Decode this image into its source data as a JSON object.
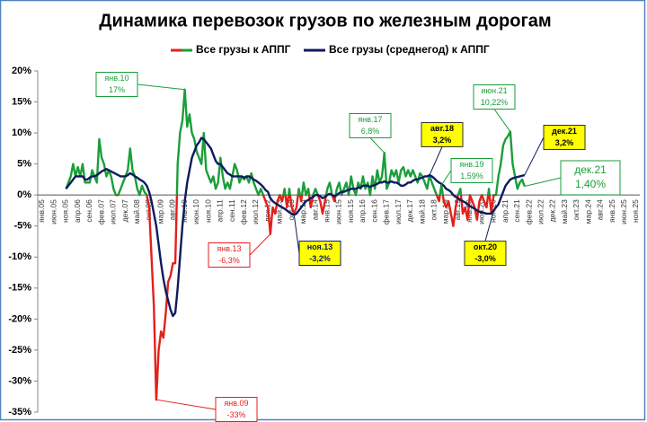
{
  "chart_data": {
    "type": "line",
    "title": "Динамика перевозок грузов по железным дорогам",
    "categories": [
      "янв.05",
      null,
      null,
      null,
      null,
      "июн.05",
      null,
      null,
      null,
      null,
      "ноя.05",
      null,
      null,
      null,
      null,
      "апр.06",
      null,
      null,
      null,
      null,
      "сен.06",
      null,
      null,
      null,
      null,
      "фев.07",
      null,
      null,
      null,
      null,
      "июл.07",
      null,
      null,
      null,
      null,
      "дек.07",
      null,
      null,
      null,
      null,
      "май.08",
      null,
      null,
      null,
      null,
      "окт.08",
      null,
      null,
      null,
      null,
      "мар.09",
      null,
      null,
      null,
      null,
      "авг.09",
      null,
      null,
      null,
      null,
      "янв.10",
      null,
      null,
      null,
      null,
      "июн.10",
      null,
      null,
      null,
      null,
      "ноя.10",
      null,
      null,
      null,
      null,
      "апр.11",
      null,
      null,
      null,
      null,
      "сен.11",
      null,
      null,
      null,
      null,
      "фев.12",
      null,
      null,
      null,
      null,
      "июл.12",
      null,
      null,
      null,
      null,
      "дек.12",
      null,
      null,
      null,
      null,
      "май.13",
      null,
      null,
      null,
      null,
      "окт.13",
      null,
      null,
      null,
      null,
      "мар.14",
      null,
      null,
      null,
      null,
      "авг.14",
      null,
      null,
      null,
      null,
      "янв.15",
      null,
      null,
      null,
      null,
      "июн.15",
      null,
      null,
      null,
      null,
      "ноя.15",
      null,
      null,
      null,
      null,
      "апр.16",
      null,
      null,
      null,
      null,
      "сен.16",
      null,
      null,
      null,
      null,
      "фев.17",
      null,
      null,
      null,
      null,
      "июл.17",
      null,
      null,
      null,
      null,
      "дек.17",
      null,
      null,
      null,
      null,
      "май.18",
      null,
      null,
      null,
      null,
      "окт.18",
      null,
      null,
      null,
      null,
      "мар.19",
      null,
      null,
      null,
      null,
      "авг.19",
      null,
      null,
      null,
      null,
      "янв.20",
      null,
      null,
      null,
      null,
      "июн.20",
      null,
      null,
      null,
      null,
      "ноя.20",
      null,
      null,
      null,
      null,
      "апр.21",
      null,
      null,
      null,
      null,
      "сен.21",
      null,
      null,
      null,
      null,
      "фев.22",
      null,
      null,
      null,
      null,
      "июл.22",
      null,
      null,
      null,
      null,
      "дек.22",
      null,
      null,
      null,
      null,
      "май.23",
      null,
      null,
      null,
      null,
      "окт.23",
      null,
      null,
      null,
      null,
      "мар.24",
      null,
      null,
      null,
      null,
      "авг.24",
      null,
      null,
      null,
      null,
      "янв.25",
      null,
      null,
      null,
      null,
      "июн.25",
      null,
      null,
      null,
      null,
      "ноя.25"
    ],
    "series": [
      {
        "name": "Все грузы к АППГ",
        "color": "#1a9e3a",
        "negative_color": "#e3201b",
        "values": [
          null,
          null,
          null,
          null,
          null,
          null,
          null,
          null,
          null,
          null,
          1,
          2,
          3,
          5,
          3,
          4.5,
          3,
          5,
          2,
          2,
          2,
          4,
          3,
          2,
          9,
          6,
          5,
          3,
          4,
          3,
          1,
          0,
          0,
          1,
          2,
          3,
          4,
          7.5,
          4,
          3,
          1,
          0,
          1.5,
          0.5,
          0,
          -2,
          -10,
          -18,
          -33,
          -25,
          -22,
          -23,
          -19,
          -14,
          -13,
          -11,
          -11,
          5,
          10,
          12,
          17,
          11,
          13,
          10,
          9,
          7,
          6,
          5,
          10,
          4,
          3,
          2,
          3,
          1,
          2,
          6,
          3,
          1,
          2,
          1,
          3,
          5,
          4,
          2,
          3,
          2.5,
          3,
          2,
          3.5,
          2,
          1,
          0,
          1,
          0,
          -1,
          -2,
          -6.3,
          -2,
          -3,
          -1,
          0,
          -1,
          1,
          -2,
          1,
          -2,
          -3,
          -2,
          1,
          -1,
          2,
          0,
          1,
          -2,
          0,
          1,
          0,
          -1,
          -3,
          -1,
          1,
          2,
          0,
          -1,
          1,
          2,
          0,
          1,
          2,
          0,
          3,
          1,
          0,
          2,
          1,
          3,
          1,
          2,
          0,
          3,
          1,
          4,
          2,
          3,
          6.8,
          1,
          2,
          4,
          3,
          4,
          2,
          4,
          4.5,
          3,
          4,
          3,
          4,
          3,
          2,
          3.5,
          3,
          2,
          1,
          3.2,
          2,
          1,
          0,
          -1,
          1.59,
          -1,
          -2,
          -1,
          -3,
          -5,
          -2,
          0,
          1,
          -3,
          -2,
          -4,
          0,
          -1,
          -2,
          -4,
          -1,
          0,
          -1,
          -2,
          1,
          -3,
          0,
          0,
          3,
          5,
          8,
          9,
          9.5,
          10.22,
          5,
          3,
          1,
          2,
          2.5,
          1.4,
          null,
          null,
          null,
          null,
          null,
          null,
          null,
          null,
          null,
          null,
          null,
          null,
          null,
          null,
          null,
          null,
          null,
          null,
          null,
          null,
          null,
          null,
          null,
          null,
          null,
          null,
          null,
          null,
          null,
          null,
          null,
          null,
          null,
          null,
          null,
          null,
          null,
          null,
          null,
          null,
          null,
          null,
          null,
          null,
          null,
          null,
          null
        ]
      },
      {
        "name": "Все грузы (среднегод) к АППГ",
        "color": "#0d1b5e",
        "values": [
          null,
          null,
          null,
          null,
          null,
          null,
          null,
          null,
          null,
          null,
          1,
          1.5,
          2,
          2.5,
          3,
          3,
          3,
          3,
          2.5,
          2.5,
          2.8,
          3,
          3,
          3.2,
          3.5,
          3.8,
          4,
          4.2,
          4,
          3.8,
          3.6,
          3.4,
          3.2,
          3,
          3,
          3,
          3.2,
          3.5,
          3.3,
          3,
          2.8,
          2.5,
          2.3,
          2,
          1.5,
          0.5,
          -1,
          -3,
          -5,
          -8,
          -11,
          -13.5,
          -15.5,
          -17,
          -18.5,
          -19.5,
          -19,
          -15,
          -10,
          -5,
          -1,
          2,
          4,
          6,
          7,
          8,
          8.5,
          9.2,
          9,
          8.5,
          8,
          7.5,
          6.5,
          5.5,
          5,
          5,
          4.5,
          4,
          3.5,
          3.3,
          3,
          3,
          3,
          3,
          3,
          2.8,
          3,
          3,
          2.8,
          2.5,
          2.3,
          2,
          1.7,
          1.3,
          0.8,
          0.5,
          -0.5,
          -1,
          -1.3,
          -1.5,
          -1.8,
          -2,
          -2.2,
          -2.5,
          -2.8,
          -3,
          -3.2,
          -3,
          -2.5,
          -2,
          -1.5,
          -1,
          -0.8,
          -0.5,
          -0.3,
          0,
          0,
          -0.2,
          -0.5,
          -0.3,
          0,
          0.2,
          0,
          -0.2,
          0,
          0.3,
          0.5,
          0.5,
          0.7,
          0.8,
          1,
          1,
          1,
          1.2,
          1.2,
          1.5,
          1.5,
          1.5,
          1.3,
          1.5,
          1.6,
          1.8,
          2,
          2,
          2.2,
          2,
          2,
          2.2,
          2,
          2,
          1.8,
          1.5,
          1.5,
          1.7,
          2,
          2,
          2.3,
          2.5,
          2.5,
          2.7,
          2.8,
          3,
          3,
          3.2,
          3,
          2.7,
          2.3,
          2,
          1.8,
          1.5,
          1,
          0.8,
          0.5,
          0,
          -0.3,
          -0.5,
          -0.8,
          -1,
          -1.2,
          -1.5,
          -1.8,
          -2,
          -2.2,
          -2.5,
          -2.7,
          -2.8,
          -2.9,
          -3,
          -3,
          -3,
          -2.5,
          -2,
          -1.5,
          -0.5,
          0.5,
          1.5,
          2,
          2.5,
          2.7,
          2.8,
          2.9,
          3,
          3.1,
          3.2,
          null,
          null,
          null,
          null,
          null,
          null,
          null,
          null,
          null,
          null,
          null,
          null,
          null,
          null,
          null,
          null,
          null,
          null,
          null,
          null,
          null,
          null,
          null,
          null,
          null,
          null,
          null,
          null,
          null,
          null,
          null,
          null,
          null,
          null,
          null,
          null,
          null,
          null,
          null,
          null,
          null,
          null,
          null,
          null,
          null,
          null,
          null
        ]
      }
    ],
    "ylim": [
      -35,
      20
    ],
    "yticks": [
      {
        "value": 20,
        "label": "20%"
      },
      {
        "value": 15,
        "label": "15%"
      },
      {
        "value": 10,
        "label": "10%"
      },
      {
        "value": 5,
        "label": "5%"
      },
      {
        "value": 0,
        "label": "0%"
      },
      {
        "value": -5,
        "label": "-5%"
      },
      {
        "value": -10,
        "label": "-10%"
      },
      {
        "value": -15,
        "label": "-15%"
      },
      {
        "value": -20,
        "label": "-20%"
      },
      {
        "value": -25,
        "label": "-25%"
      },
      {
        "value": -30,
        "label": "-30%"
      },
      {
        "value": -35,
        "label": "-35%"
      }
    ],
    "grid": false,
    "legend": "top",
    "annotations": [
      {
        "lines": [
          "янв.10",
          "17%"
        ],
        "color": "#1a9e3a",
        "background": "#ffffff"
      },
      {
        "lines": [
          "янв.09",
          "-33%"
        ],
        "color": "#e3201b",
        "background": "#ffffff"
      },
      {
        "lines": [
          "янв.13",
          "-6,3%"
        ],
        "color": "#e3201b",
        "background": "#ffffff"
      },
      {
        "lines": [
          "ноя.13",
          "-3,2%"
        ],
        "color": "#0d1b5e",
        "background": "#ffff00"
      },
      {
        "lines": [
          "янв.17",
          "6,8%"
        ],
        "color": "#1a9e3a",
        "background": "#ffffff"
      },
      {
        "lines": [
          "авг.18",
          "3,2%"
        ],
        "color": "#000000",
        "background": "#ffff00"
      },
      {
        "lines": [
          "янв.19",
          "1,59%"
        ],
        "color": "#1a9e3a",
        "background": "#ffffff"
      },
      {
        "lines": [
          "июн.21",
          "10,22%"
        ],
        "color": "#1a9e3a",
        "background": "#ffffff"
      },
      {
        "lines": [
          "окт.20",
          "-3,0%"
        ],
        "color": "#000000",
        "background": "#ffff00"
      },
      {
        "lines": [
          "дек.21",
          "3,2%"
        ],
        "color": "#000000",
        "background": "#ffff00"
      },
      {
        "lines": [
          "дек.21",
          "1,40%"
        ],
        "color": "#1a9e3a",
        "background": "#ffffff"
      }
    ]
  }
}
